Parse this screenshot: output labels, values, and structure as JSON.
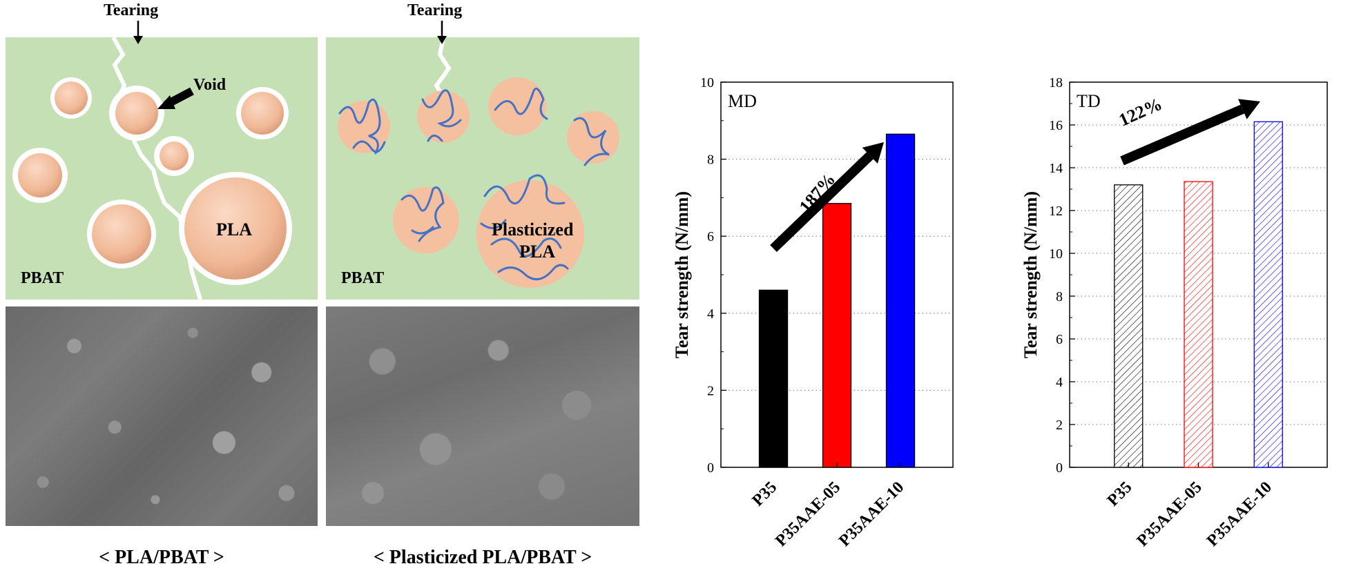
{
  "schematic": {
    "left": {
      "tearing": "Tearing",
      "void": "Void",
      "pla": "PLA",
      "matrix": "PBAT",
      "caption": "< PLA/PBAT >"
    },
    "right": {
      "tearing": "Tearing",
      "pla_line1": "Plasticized",
      "pla_line2": "PLA",
      "matrix": "PBAT",
      "caption": "< Plasticized PLA/PBAT >"
    }
  },
  "colors": {
    "matrix_green": "#c5e0b4",
    "particle": "#f4c0a0",
    "chain_blue": "#4472c4",
    "p35": "#000000",
    "p35aae05": "#ff0000",
    "p35aae10": "#0000ff"
  },
  "chart_data": [
    {
      "type": "bar",
      "title": "",
      "panel_label": "MD",
      "ylabel": "Tear strength (N/mm)",
      "xlabel": "",
      "categories": [
        "P35",
        "P35AAE-05",
        "P35AAE-10"
      ],
      "values": [
        4.6,
        6.85,
        8.65
      ],
      "ylim": [
        0,
        10
      ],
      "yticks": [
        0,
        2,
        4,
        6,
        8,
        10
      ],
      "fill": "solid",
      "colors": [
        "#000000",
        "#ff0000",
        "#0000ff"
      ],
      "grid": "horizontal dotted",
      "annotation": "187%"
    },
    {
      "type": "bar",
      "title": "",
      "panel_label": "TD",
      "ylabel": "Tear strength (N/mm)",
      "xlabel": "",
      "categories": [
        "P35",
        "P35AAE-05",
        "P35AAE-10"
      ],
      "values": [
        13.2,
        13.35,
        16.15
      ],
      "ylim": [
        0,
        18
      ],
      "yticks": [
        0,
        2,
        4,
        6,
        8,
        10,
        12,
        14,
        16,
        18
      ],
      "fill": "hatched",
      "colors": [
        "#000000",
        "#ff0000",
        "#0000ff"
      ],
      "grid": "horizontal dotted",
      "annotation": "122%"
    }
  ]
}
